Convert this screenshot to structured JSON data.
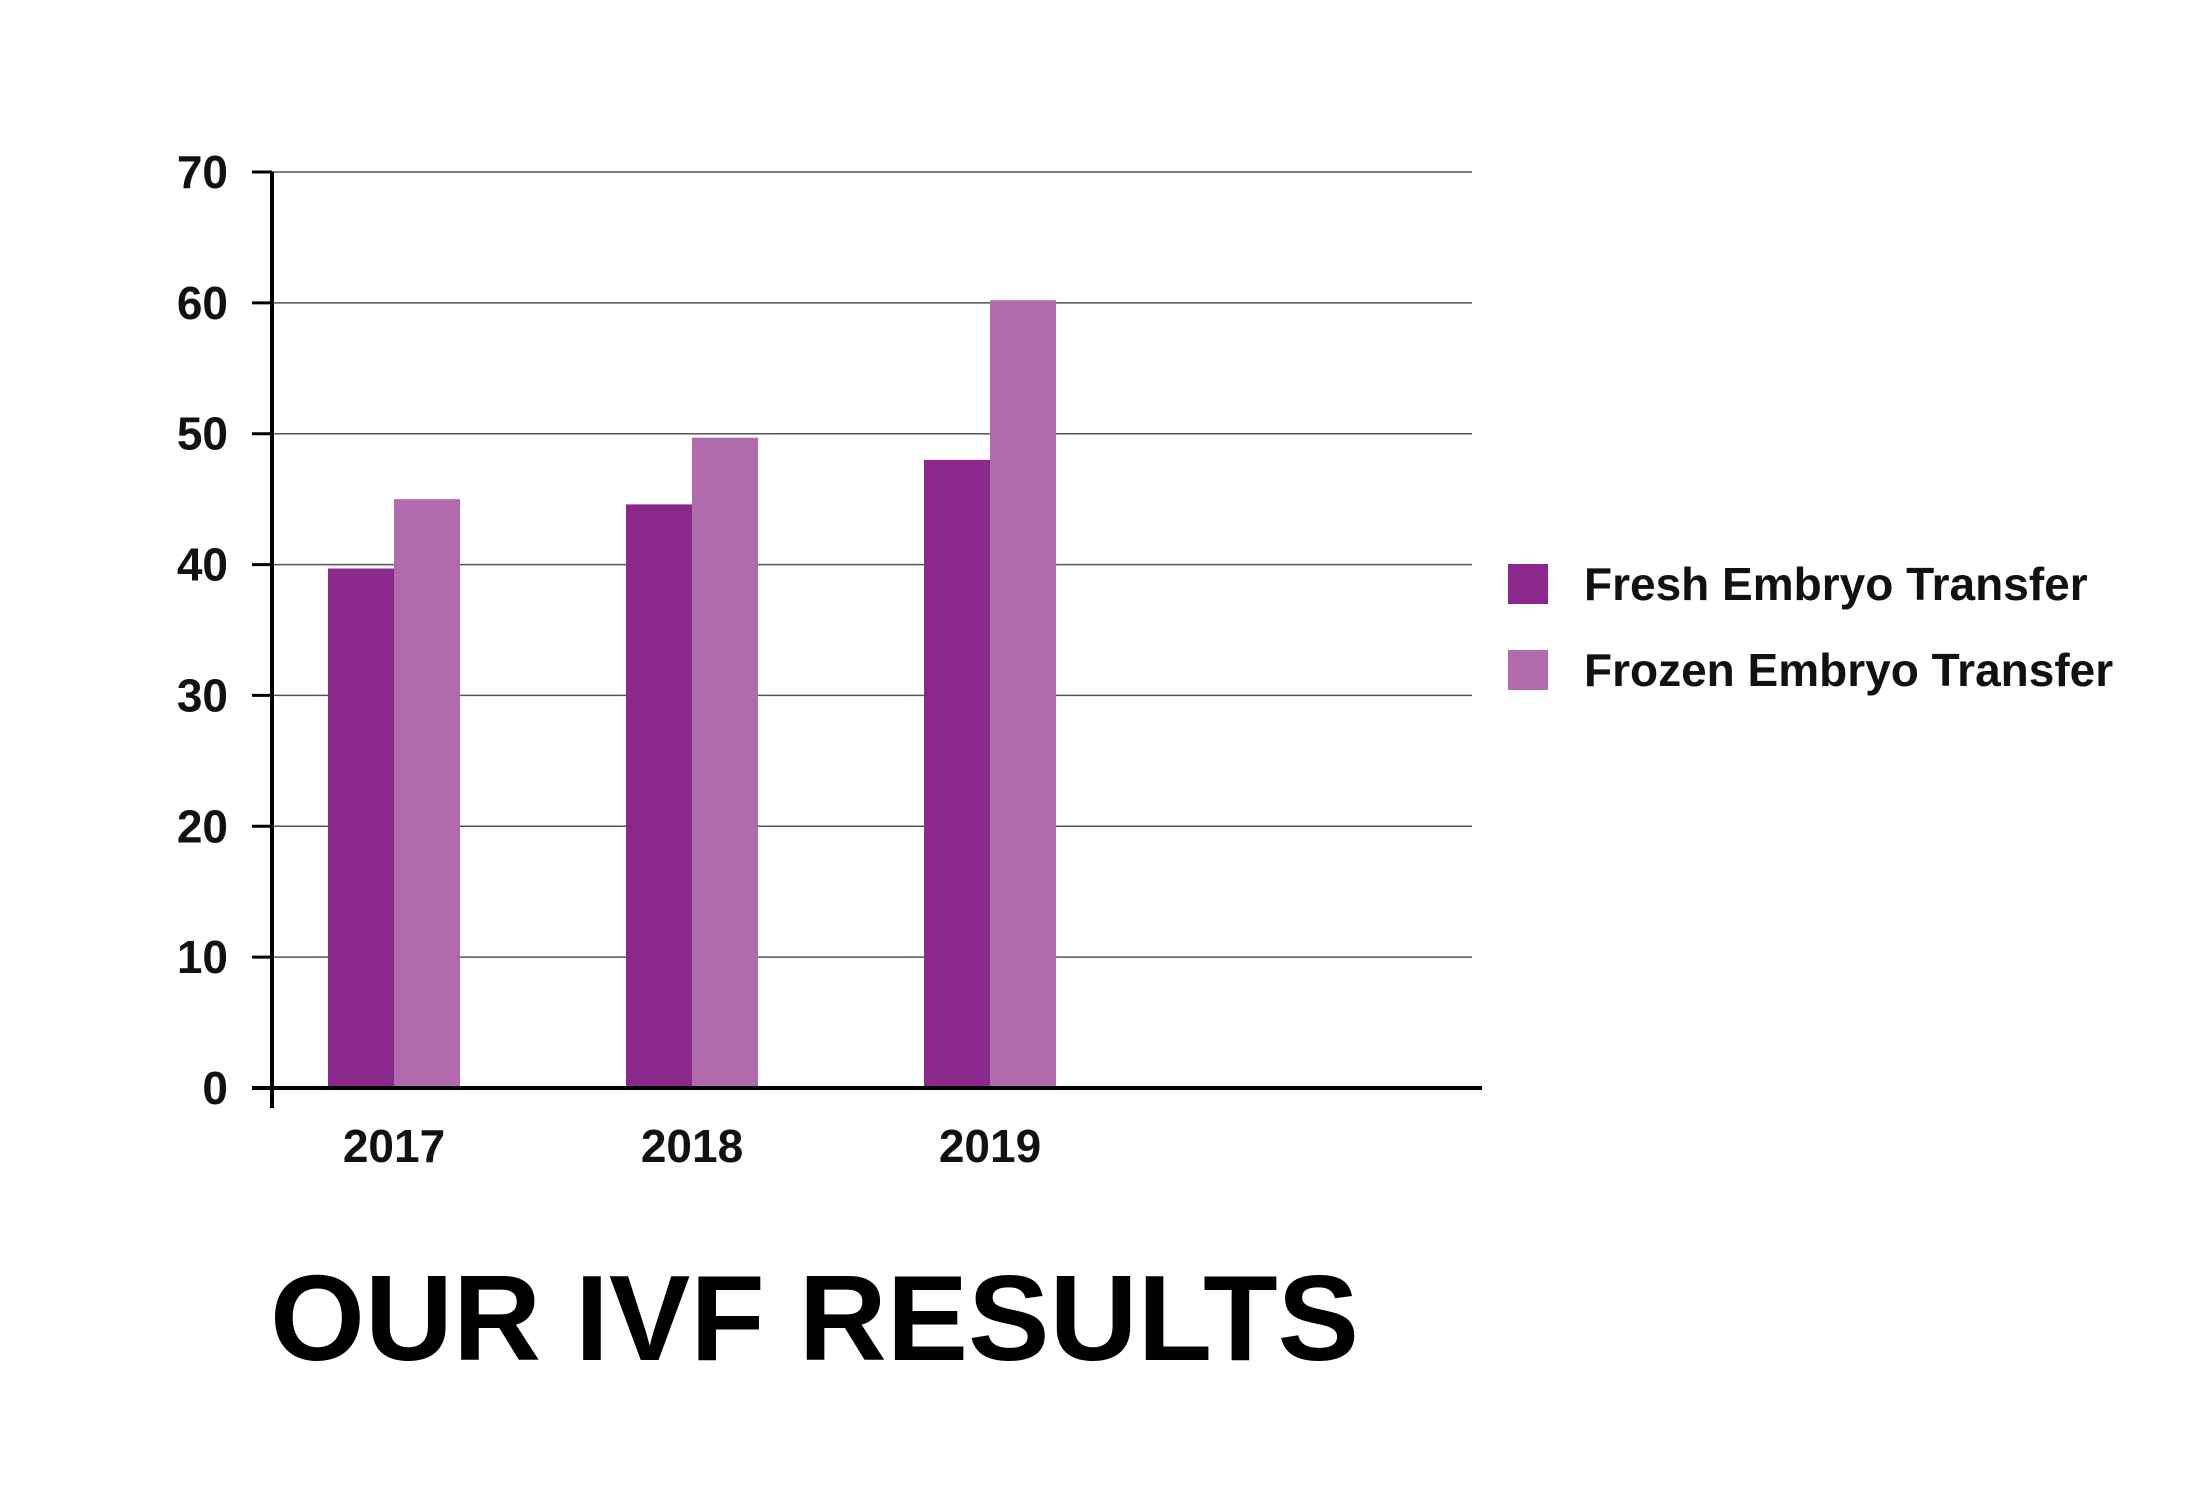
{
  "chart_data": {
    "type": "bar",
    "title": "OUR IVF RESULTS",
    "xlabel": "",
    "ylabel": "",
    "categories": [
      "2017",
      "2018",
      "2019"
    ],
    "series": [
      {
        "name": "Fresh Embryo Transfer",
        "color": "#8b288c",
        "values": [
          39.7,
          44.6,
          48.0
        ]
      },
      {
        "name": "Frozen Embryo Transfer",
        "color": "#b26aae",
        "values": [
          45.0,
          49.7,
          60.2
        ]
      }
    ],
    "ylim": [
      0,
      70
    ],
    "yticks": [
      "0",
      "10",
      "20",
      "30",
      "40",
      "50",
      "60",
      "70"
    ],
    "grid": true,
    "legend_position": "right"
  }
}
